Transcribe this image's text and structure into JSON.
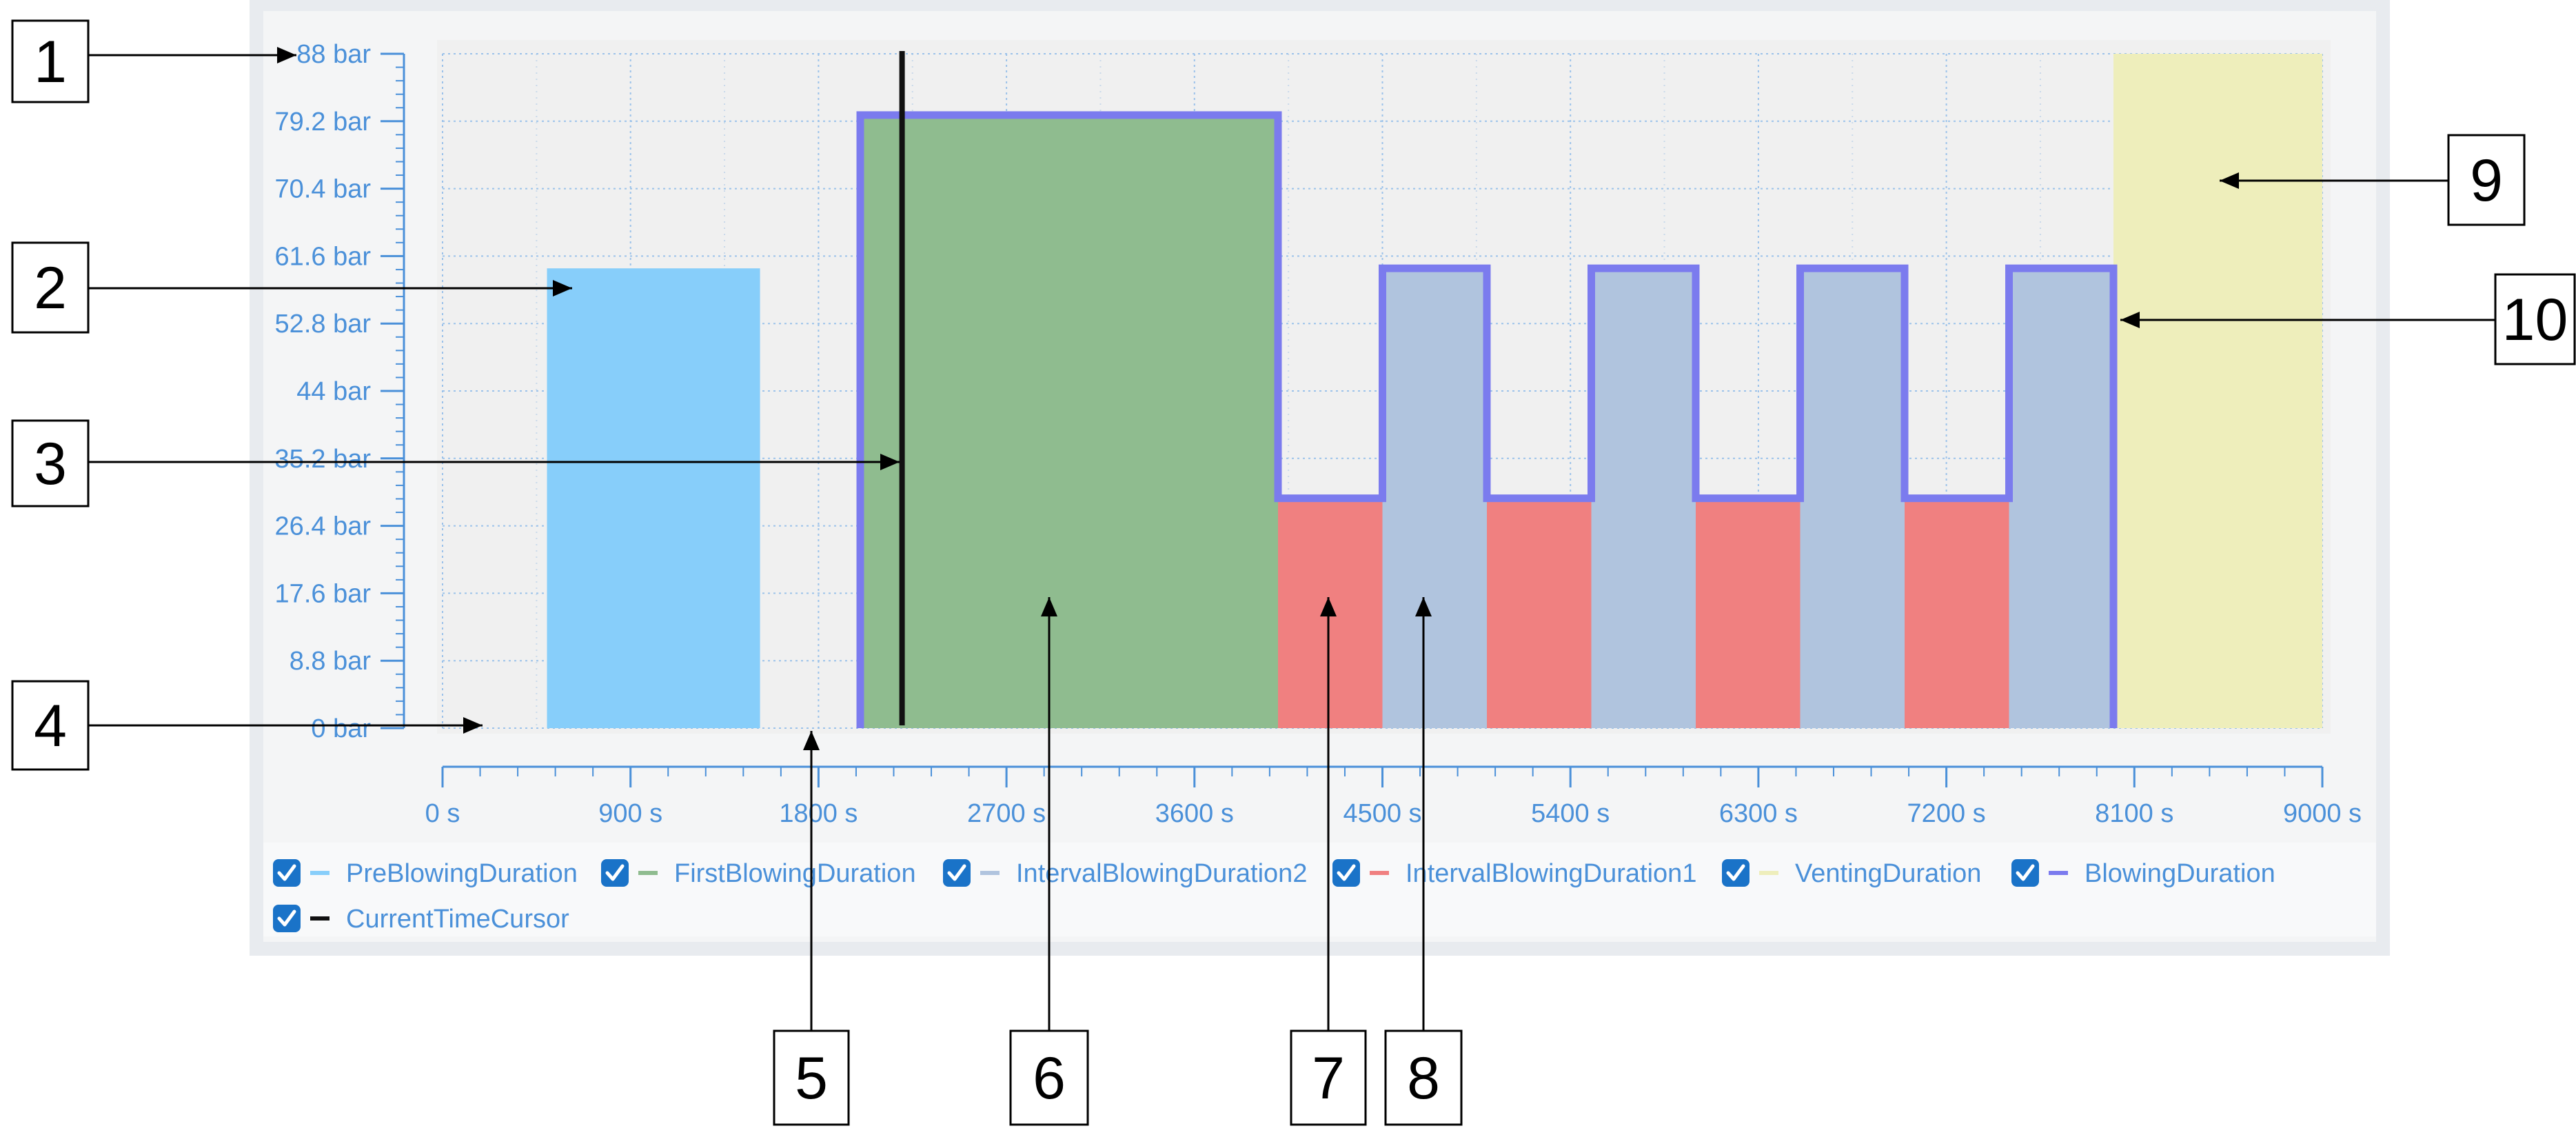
{
  "chart_data": {
    "type": "area",
    "x_unit": "s",
    "y_unit": "bar",
    "xlim": [
      0,
      9000
    ],
    "ylim": [
      0,
      88
    ],
    "x_ticks": [
      "0 s",
      "900 s",
      "1800 s",
      "2700 s",
      "3600 s",
      "4500 s",
      "5400 s",
      "6300 s",
      "7200 s",
      "8100 s",
      "9000 s"
    ],
    "y_ticks": [
      "0 bar",
      "8.8 bar",
      "17.6 bar",
      "26.4 bar",
      "35.2 bar",
      "44 bar",
      "52.8 bar",
      "61.6 bar",
      "70.4 bar",
      "79.2 bar",
      "88 bar"
    ],
    "grid": true,
    "legend_position": "bottom",
    "series": [
      {
        "name": "PreBlowingDuration",
        "color": "#87cefa",
        "visible": true,
        "segments": [
          {
            "x0": 500,
            "x1": 1520,
            "y": 60
          }
        ]
      },
      {
        "name": "FirstBlowingDuration",
        "color": "#8fbc8f",
        "visible": true,
        "segments": [
          {
            "x0": 2000,
            "x1": 4000,
            "y": 80
          }
        ]
      },
      {
        "name": "IntervalBlowingDuration2",
        "color": "#b0c4de",
        "visible": true,
        "segments": [
          {
            "x0": 4500,
            "x1": 5000,
            "y": 60
          },
          {
            "x0": 5500,
            "x1": 6000,
            "y": 60
          },
          {
            "x0": 6500,
            "x1": 7000,
            "y": 60
          },
          {
            "x0": 7500,
            "x1": 8000,
            "y": 60
          }
        ]
      },
      {
        "name": "IntervalBlowingDuration1",
        "color": "#f08080",
        "visible": true,
        "segments": [
          {
            "x0": 4000,
            "x1": 4500,
            "y": 30
          },
          {
            "x0": 5000,
            "x1": 5500,
            "y": 30
          },
          {
            "x0": 6000,
            "x1": 6500,
            "y": 30
          },
          {
            "x0": 7000,
            "x1": 7500,
            "y": 30
          }
        ]
      },
      {
        "name": "VentingDuration",
        "color": "#eeeebb",
        "visible": true,
        "segments": [
          {
            "x0": 8000,
            "x1": 9000,
            "y": 88
          }
        ]
      },
      {
        "name": "BlowingDuration",
        "color": "#7b7bee",
        "visible": true,
        "x": [
          2000,
          2000,
          4000,
          4000,
          4500,
          4500,
          5000,
          5000,
          5500,
          5500,
          6000,
          6000,
          6500,
          6500,
          7000,
          7000,
          7500,
          7500,
          8000,
          8000
        ],
        "y": [
          0,
          80,
          80,
          30,
          30,
          60,
          60,
          30,
          30,
          60,
          60,
          30,
          30,
          60,
          60,
          30,
          30,
          60,
          60,
          0
        ]
      },
      {
        "name": "CurrentTimeCursor",
        "color": "#111111",
        "visible": true,
        "x": 2200
      }
    ],
    "callouts": [
      "1",
      "2",
      "3",
      "4",
      "5",
      "6",
      "7",
      "8",
      "9",
      "10"
    ]
  }
}
